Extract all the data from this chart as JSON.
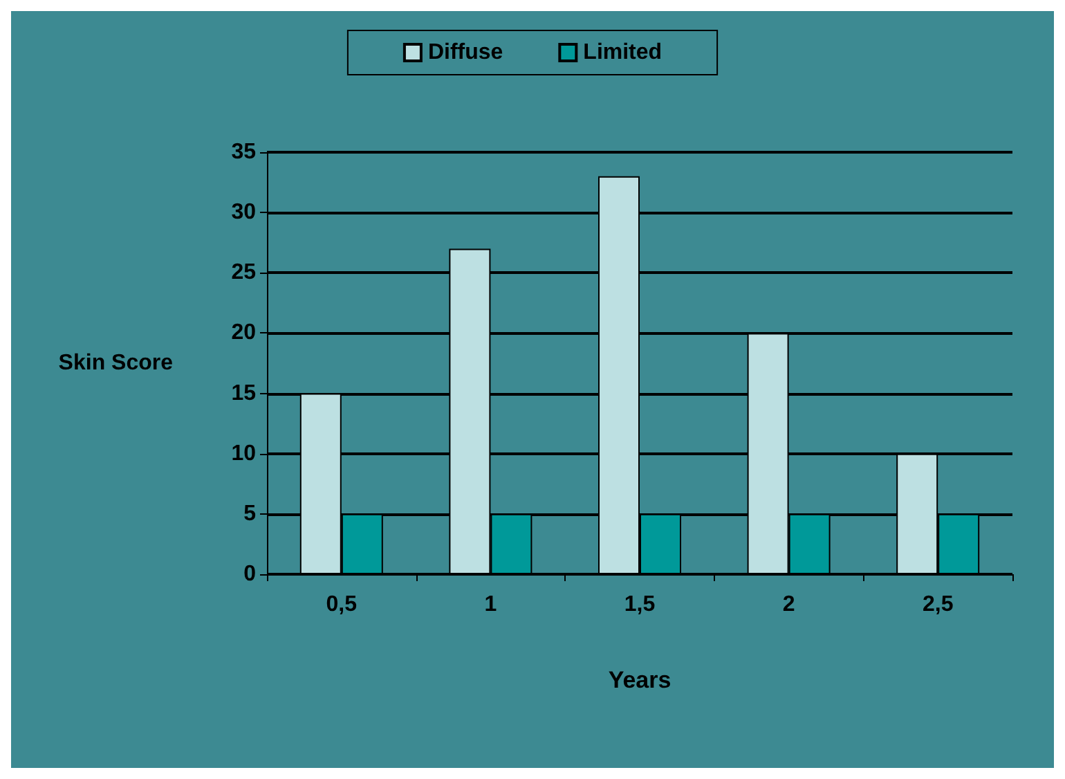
{
  "chart_data": {
    "type": "bar",
    "xlabel": "Years",
    "ylabel": "Skin Score",
    "categories": [
      "0,5",
      "1",
      "1,5",
      "2",
      "2,5"
    ],
    "series": [
      {
        "name": "Diffuse",
        "color": "#bde0e2",
        "values": [
          15,
          27,
          33,
          20,
          10
        ]
      },
      {
        "name": "Limited",
        "color": "#009999",
        "values": [
          5,
          5,
          5,
          5,
          5
        ]
      }
    ],
    "ylim": [
      0,
      35
    ],
    "yticks": [
      0,
      5,
      10,
      15,
      20,
      25,
      30,
      35
    ],
    "grid": "y",
    "legend": "top"
  }
}
